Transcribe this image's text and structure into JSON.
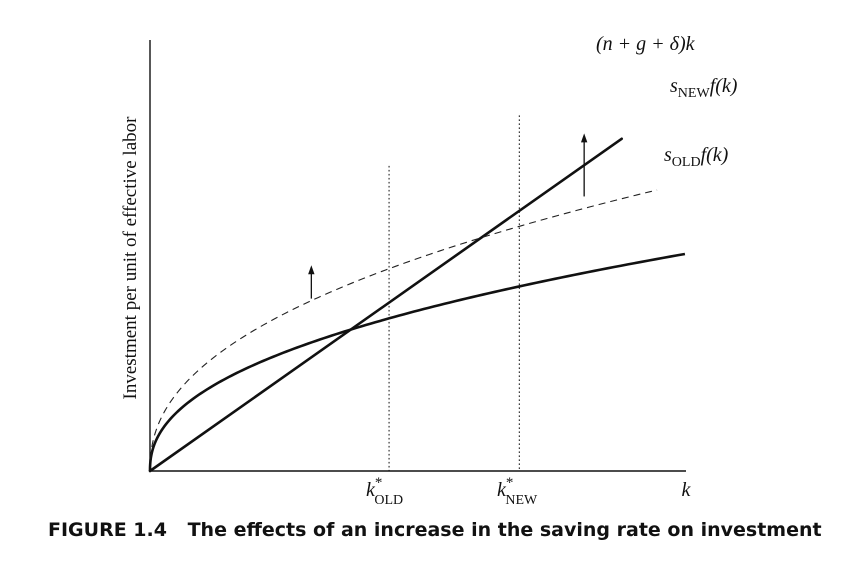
{
  "chart_data": {
    "type": "line",
    "title": "The effects of an increase in the saving rate on investment",
    "figure_label": "FIGURE 1.4",
    "ylabel": "Investment per unit of effective labor",
    "xlabel": "k",
    "xlim": [
      0,
      1
    ],
    "ylim": [
      0,
      1
    ],
    "grid": false,
    "series": [
      {
        "name": "break_even",
        "label_base": "(n + g + δ)k",
        "style": "solid",
        "form": "linear",
        "slope": 0.876
      },
      {
        "name": "s_old_f",
        "label_base": "s",
        "label_sub": "OLD",
        "label_tail": "f(k)",
        "style": "solid",
        "form": "power",
        "a": 0.504,
        "alpha": 0.437
      },
      {
        "name": "s_new_f",
        "label_base": "s",
        "label_sub": "NEW",
        "label_tail": "f(k)",
        "style": "dashed",
        "form": "power",
        "a": 0.668,
        "alpha": 0.437
      }
    ],
    "reference_lines": [
      {
        "name": "k-old-line",
        "x": 0.446,
        "label_base": "k",
        "label_sup": "*",
        "label_sub": "OLD"
      },
      {
        "name": "k-new-line",
        "x": 0.689,
        "label_base": "k",
        "label_sup": "*",
        "label_sub": "NEW"
      }
    ],
    "arrows": [
      {
        "name": "shift-arrow-left",
        "x": 0.301,
        "y_from": 0.4,
        "y_to": 0.475
      },
      {
        "name": "shift-arrow-right",
        "x": 0.81,
        "y_from": 0.637,
        "y_to": 0.781
      }
    ]
  }
}
